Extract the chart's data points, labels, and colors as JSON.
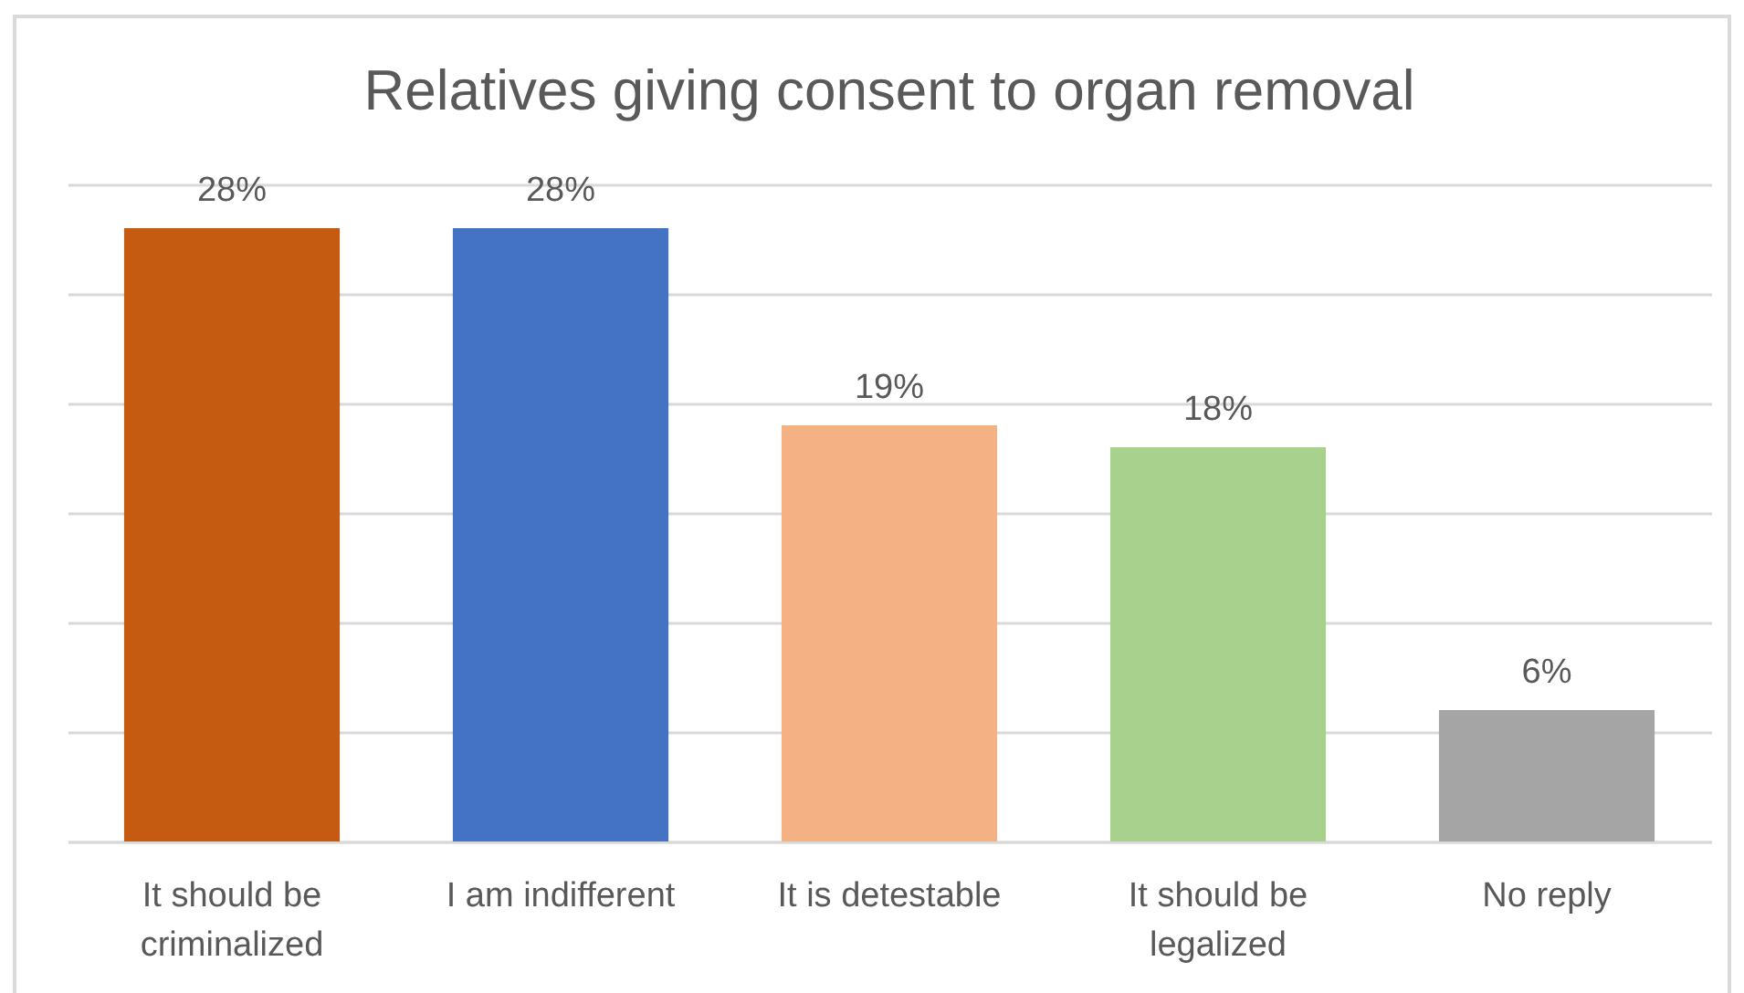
{
  "chart_data": {
    "type": "bar",
    "title": "Relatives giving consent to organ removal",
    "categories": [
      "It should be criminalized",
      "I am indifferent",
      "It is detestable",
      "It should be legalized",
      "No reply"
    ],
    "values": [
      28,
      28,
      19,
      18,
      6
    ],
    "colors": [
      "#c55a11",
      "#4472c4",
      "#f4b183",
      "#a9d18e",
      "#a5a5a5"
    ],
    "value_labels": [
      "28%",
      "28%",
      "19%",
      "18%",
      "6%"
    ],
    "ylim": [
      0,
      30
    ],
    "yticks": [
      {
        "value": 0,
        "label": null
      },
      {
        "value": 5,
        "label": null
      },
      {
        "value": 10,
        "label": null
      },
      {
        "value": 15,
        "label": null
      },
      {
        "value": 20,
        "label": null
      },
      {
        "value": 25,
        "label": null
      },
      {
        "value": 30,
        "label": null
      }
    ],
    "grid": "y",
    "tick_labels": "x"
  }
}
